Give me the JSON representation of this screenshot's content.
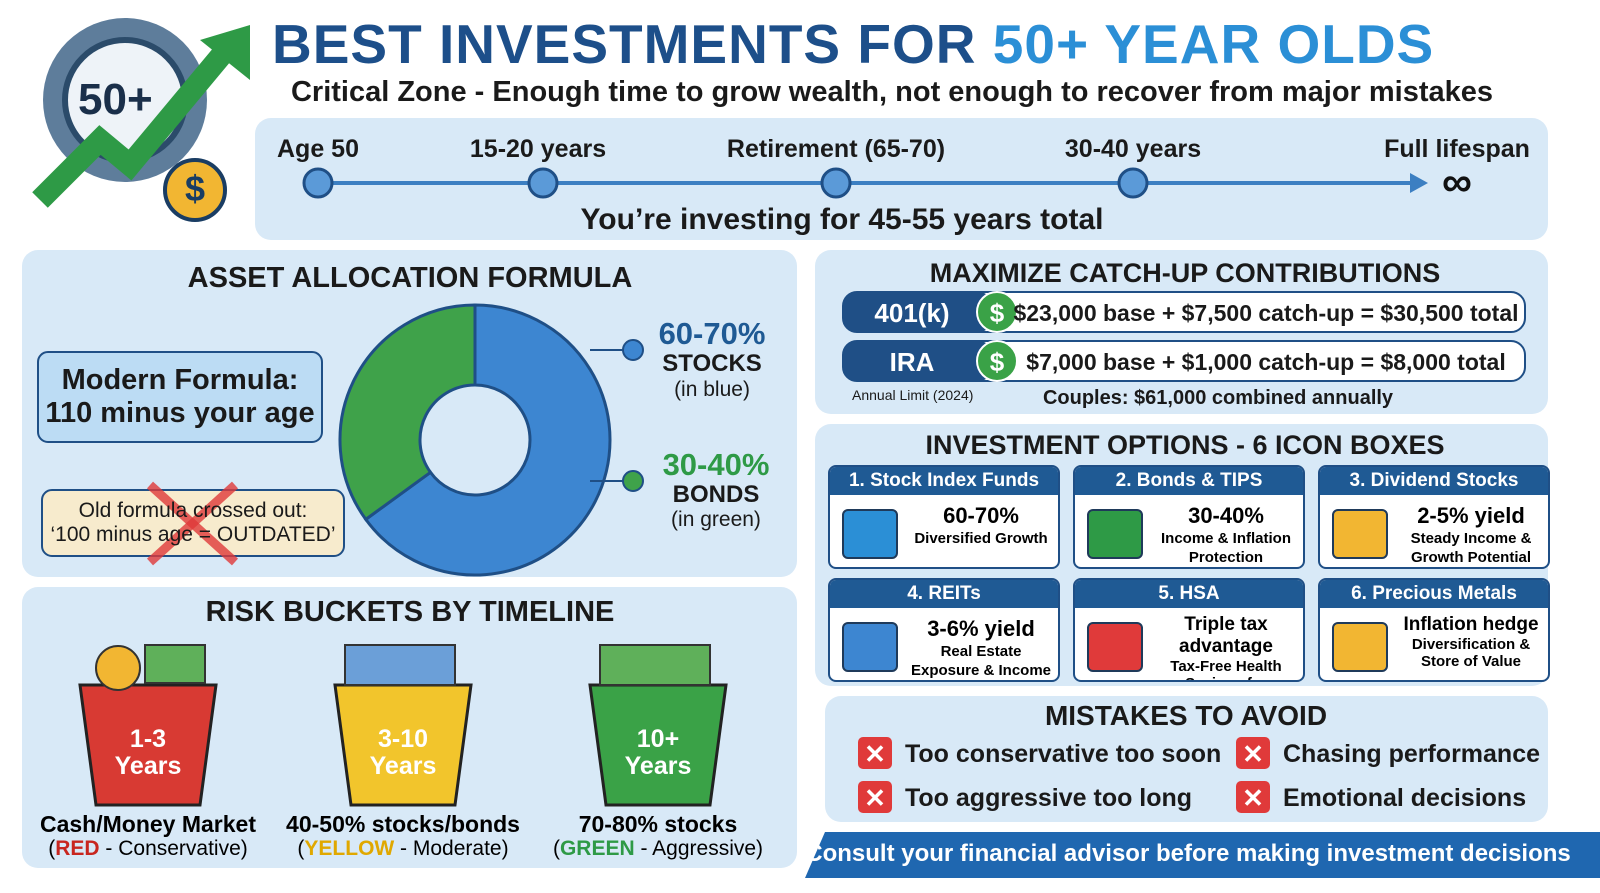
{
  "header": {
    "badge": "50+",
    "title_start": "BEST INVESTMENTS FOR ",
    "title_end": "50+ YEAR OLDS",
    "subtitle": "Critical Zone - Enough time to grow wealth, not enough to recover from major mistakes"
  },
  "timeline": {
    "stages": [
      "Age 50",
      "15-20 years",
      "Retirement (65-70)",
      "30-40 years",
      "Full lifespan"
    ],
    "total": "You’re investing for 45-55 years total"
  },
  "allocation": {
    "title": "ASSET ALLOCATION FORMULA",
    "modern_formula": [
      "Modern Formula:",
      "110 minus your age"
    ],
    "old_formula": [
      "Old formula crossed out:",
      "‘100 minus age = OUTDATED’"
    ],
    "donut": {
      "values": [
        65,
        35
      ],
      "colors": [
        "#3d86d1",
        "#3fa24a"
      ]
    },
    "stocks": {
      "range": "60-70%",
      "label": "STOCKS",
      "note": "(in blue)"
    },
    "bonds": {
      "range": "30-40%",
      "label": "BONDS",
      "note": "(in green)"
    }
  },
  "risk_buckets": {
    "title": "RISK BUCKETS BY TIMELINE",
    "buckets": [
      {
        "label": [
          "1-3",
          "Years"
        ],
        "desc": "Cash/Money Market",
        "note_start": "(",
        "color_word": "RED",
        "note_end": " - Conservative)"
      },
      {
        "label": [
          "3-10",
          "Years"
        ],
        "desc": "40-50% stocks/bonds",
        "note_start": "(",
        "color_word": "YELLOW",
        "note_end": " - Moderate)"
      },
      {
        "label": [
          "10+",
          "Years"
        ],
        "desc": "70-80% stocks",
        "note_start": "(",
        "color_word": "GREEN",
        "note_end": " - Aggressive)"
      }
    ]
  },
  "catch_up": {
    "title": "MAXIMIZE CATCH-UP CONTRIBUTIONS",
    "rows": [
      {
        "account": "401(k)",
        "symbol": "$",
        "text": "$23,000 base + $7,500 catch-up = $30,500 total"
      },
      {
        "account": "IRA",
        "symbol": "$",
        "text": "$7,000 base + $1,000 catch-up = $8,000 total"
      }
    ],
    "footnote": "Annual Limit (2024)",
    "couples": "Couples: $61,000 combined annually"
  },
  "options": {
    "title": "INVESTMENT OPTIONS - 6 ICON BOXES",
    "boxes": [
      {
        "title": "1. Stock Index Funds",
        "headline": "60-70%",
        "lines": [
          "Diversified Growth"
        ]
      },
      {
        "title": "2. Bonds & TIPS",
        "headline": "30-40%",
        "lines": [
          "Income & Inflation",
          "Protection"
        ]
      },
      {
        "title": "3. Dividend Stocks",
        "headline": "2-5% yield",
        "lines": [
          "Steady Income &",
          "Growth Potential"
        ]
      },
      {
        "title": "4. REITs",
        "headline": "3-6% yield",
        "lines": [
          "Real Estate",
          "Exposure & Income"
        ]
      },
      {
        "title": "5. HSA",
        "headline": "Triple tax advantage",
        "lines": [
          "Tax-Free Health",
          "Savings for Retirement"
        ]
      },
      {
        "title": "6. Precious Metals",
        "headline": "Inflation hedge",
        "lines": [
          "Diversification &",
          "Store of Value"
        ]
      }
    ]
  },
  "mistakes": {
    "title": "MISTAKES TO AVOID",
    "items": [
      "Too conservative too soon",
      "Chasing performance",
      "Too aggressive too long",
      "Emotional decisions"
    ]
  },
  "footer": "Consult your financial advisor before making investment decisions"
}
